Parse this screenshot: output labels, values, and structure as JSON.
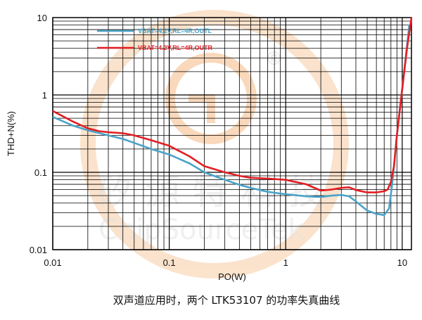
{
  "chart_data": {
    "type": "line",
    "xscale": "log",
    "yscale": "log",
    "xlim": [
      0.01,
      12
    ],
    "ylim": [
      0.01,
      10
    ],
    "xlabel": "PO(W)",
    "ylabel": "THD+N(%)",
    "x_tick_labels": [
      "0.01",
      "0.1",
      "1",
      "10"
    ],
    "y_tick_labels": [
      "10",
      "1",
      "0.1",
      "0.01"
    ],
    "grid": true,
    "legend_position": "top-left",
    "series": [
      {
        "name": "VBAT=4.2V,RL=4R,OUTL",
        "color": "#4aa3c8",
        "x": [
          0.01,
          0.015,
          0.02,
          0.03,
          0.04,
          0.05,
          0.07,
          0.1,
          0.15,
          0.2,
          0.3,
          0.4,
          0.5,
          0.7,
          1.0,
          1.5,
          2.0,
          2.5,
          3.0,
          3.5,
          4.0,
          5.0,
          6.0,
          7.0,
          7.7,
          8.1,
          8.4,
          9.0,
          10.0,
          11.5
        ],
        "y": [
          0.52,
          0.4,
          0.35,
          0.3,
          0.27,
          0.24,
          0.2,
          0.17,
          0.13,
          0.1,
          0.08,
          0.069,
          0.063,
          0.056,
          0.052,
          0.049,
          0.048,
          0.05,
          0.051,
          0.049,
          0.042,
          0.032,
          0.029,
          0.028,
          0.034,
          0.06,
          0.1,
          0.3,
          1.2,
          8.0
        ]
      },
      {
        "name": "VBAT=4.2V,RL=4R,OUTR",
        "color": "#e31e24",
        "x": [
          0.01,
          0.015,
          0.02,
          0.025,
          0.03,
          0.04,
          0.05,
          0.07,
          0.1,
          0.15,
          0.2,
          0.3,
          0.4,
          0.5,
          0.7,
          1.0,
          1.5,
          2.0,
          2.5,
          3.0,
          3.5,
          4.0,
          5.0,
          6.0,
          7.0,
          7.5,
          8.0,
          8.5,
          9.0,
          10.0,
          11.0,
          12.0
        ],
        "y": [
          0.62,
          0.45,
          0.37,
          0.34,
          0.33,
          0.32,
          0.3,
          0.26,
          0.22,
          0.16,
          0.12,
          0.1,
          0.09,
          0.085,
          0.083,
          0.08,
          0.07,
          0.058,
          0.06,
          0.063,
          0.064,
          0.059,
          0.055,
          0.055,
          0.057,
          0.06,
          0.075,
          0.12,
          0.3,
          1.2,
          4.0,
          10.0
        ]
      }
    ]
  },
  "caption": "双声道应用时，两个 LTK53107 的功率失真曲线",
  "watermark": {
    "chinese": "矽源特科技",
    "english": "ChipSourceTek",
    "registered_mark": "®",
    "color": "#f5c89a"
  }
}
